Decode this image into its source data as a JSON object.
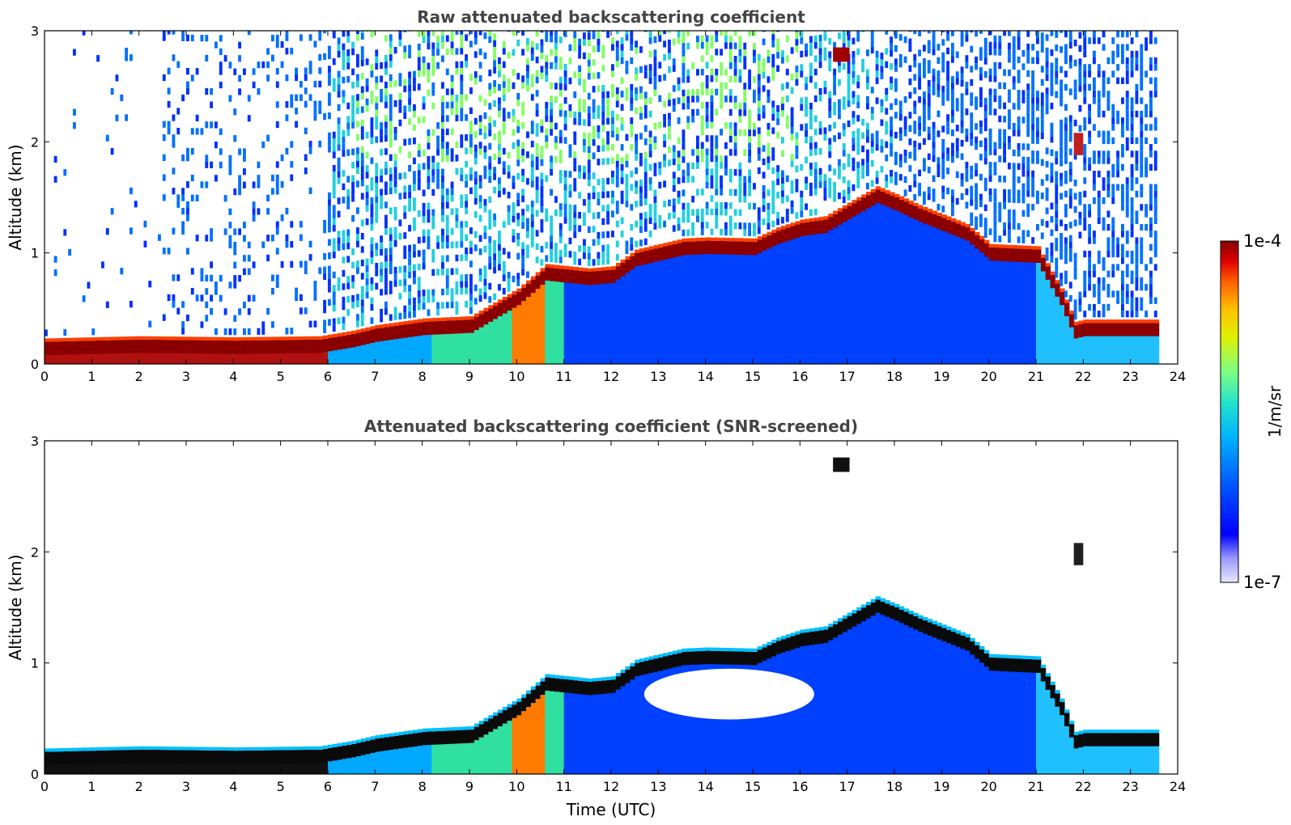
{
  "chart_data": [
    {
      "type": "heatmap",
      "title": "Raw attenuated backscattering coefficient",
      "xlabel": "",
      "ylabel": "Altitude (km)",
      "xlim": [
        0,
        24
      ],
      "ylim": [
        0,
        3
      ],
      "xticks": [
        "0",
        "1",
        "2",
        "3",
        "4",
        "5",
        "6",
        "7",
        "8",
        "9",
        "10",
        "11",
        "12",
        "13",
        "14",
        "15",
        "16",
        "17",
        "18",
        "19",
        "20",
        "21",
        "22",
        "23",
        "24"
      ],
      "yticks": [
        "0",
        "1",
        "2",
        "3"
      ],
      "layer_top_km": [
        [
          0,
          0.15
        ],
        [
          2,
          0.17
        ],
        [
          4,
          0.16
        ],
        [
          5.8,
          0.17
        ],
        [
          6.5,
          0.22
        ],
        [
          7,
          0.27
        ],
        [
          8,
          0.33
        ],
        [
          9,
          0.35
        ],
        [
          10,
          0.6
        ],
        [
          10.6,
          0.82
        ],
        [
          11.5,
          0.78
        ],
        [
          12,
          0.8
        ],
        [
          12.5,
          0.95
        ],
        [
          13.5,
          1.05
        ],
        [
          14,
          1.06
        ],
        [
          15,
          1.05
        ],
        [
          15.5,
          1.15
        ],
        [
          16,
          1.22
        ],
        [
          16.5,
          1.25
        ],
        [
          17.6,
          1.52
        ],
        [
          18,
          1.45
        ],
        [
          18.5,
          1.35
        ],
        [
          19.5,
          1.18
        ],
        [
          20,
          1.0
        ],
        [
          21,
          0.98
        ],
        [
          21.5,
          0.6
        ],
        [
          21.8,
          0.3
        ],
        [
          22,
          0.32
        ],
        [
          23.5,
          0.32
        ]
      ]
    },
    {
      "type": "heatmap",
      "title": "Attenuated backscattering coefficient (SNR-screened)",
      "xlabel": "Time (UTC)",
      "ylabel": "Altitude (km)",
      "xlim": [
        0,
        24
      ],
      "ylim": [
        0,
        3
      ],
      "xticks": [
        "0",
        "1",
        "2",
        "3",
        "4",
        "5",
        "6",
        "7",
        "8",
        "9",
        "10",
        "11",
        "12",
        "13",
        "14",
        "15",
        "16",
        "17",
        "18",
        "19",
        "20",
        "21",
        "22",
        "23",
        "24"
      ],
      "yticks": [
        "0",
        "1",
        "2",
        "3"
      ]
    }
  ],
  "colorbar": {
    "label": "1/m/sr",
    "max_label": "1e-4",
    "min_label": "1e-7",
    "range": [
      1e-07,
      0.0001
    ],
    "colors": [
      "#e8e8fb",
      "#9a9aff",
      "#0000ff",
      "#0060ff",
      "#00b0ff",
      "#20e0d0",
      "#80ff80",
      "#e0f000",
      "#ffc000",
      "#ff6000",
      "#e00000",
      "#800000"
    ]
  }
}
